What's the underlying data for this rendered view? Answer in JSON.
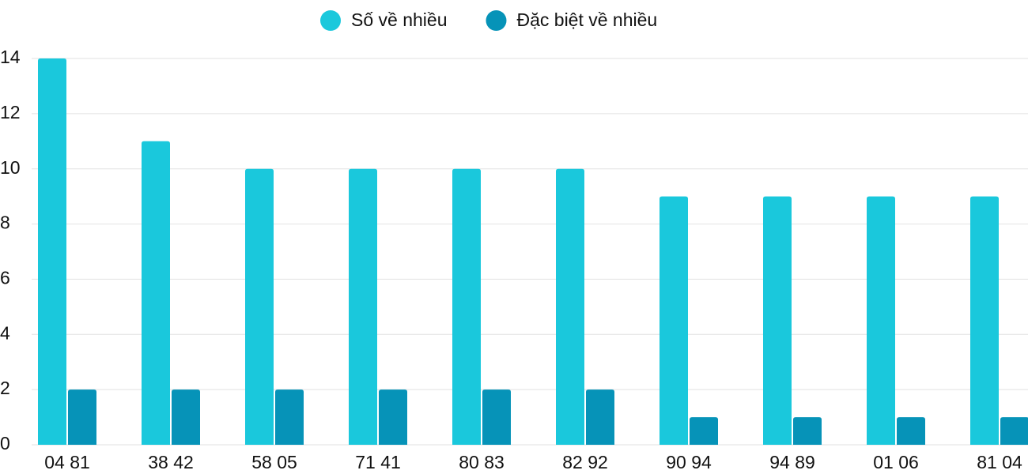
{
  "chart_data": {
    "type": "bar",
    "categories": [
      "04 81",
      "38 42",
      "58 05",
      "71 41",
      "80 83",
      "82 92",
      "90 94",
      "94 89",
      "01 06",
      "81 04"
    ],
    "series": [
      {
        "name": "Số về nhiều",
        "color": "#1ac8dc",
        "values": [
          14,
          11,
          10,
          10,
          10,
          10,
          9,
          9,
          9,
          9
        ]
      },
      {
        "name": "Đặc biệt về nhiều",
        "color": "#0693b8",
        "values": [
          2,
          2,
          2,
          2,
          2,
          2,
          1,
          1,
          1,
          1
        ]
      }
    ],
    "ylim": [
      0,
      14
    ],
    "yticks": [
      0,
      2,
      4,
      6,
      8,
      10,
      12,
      14
    ],
    "grid": true,
    "legend": "top"
  }
}
